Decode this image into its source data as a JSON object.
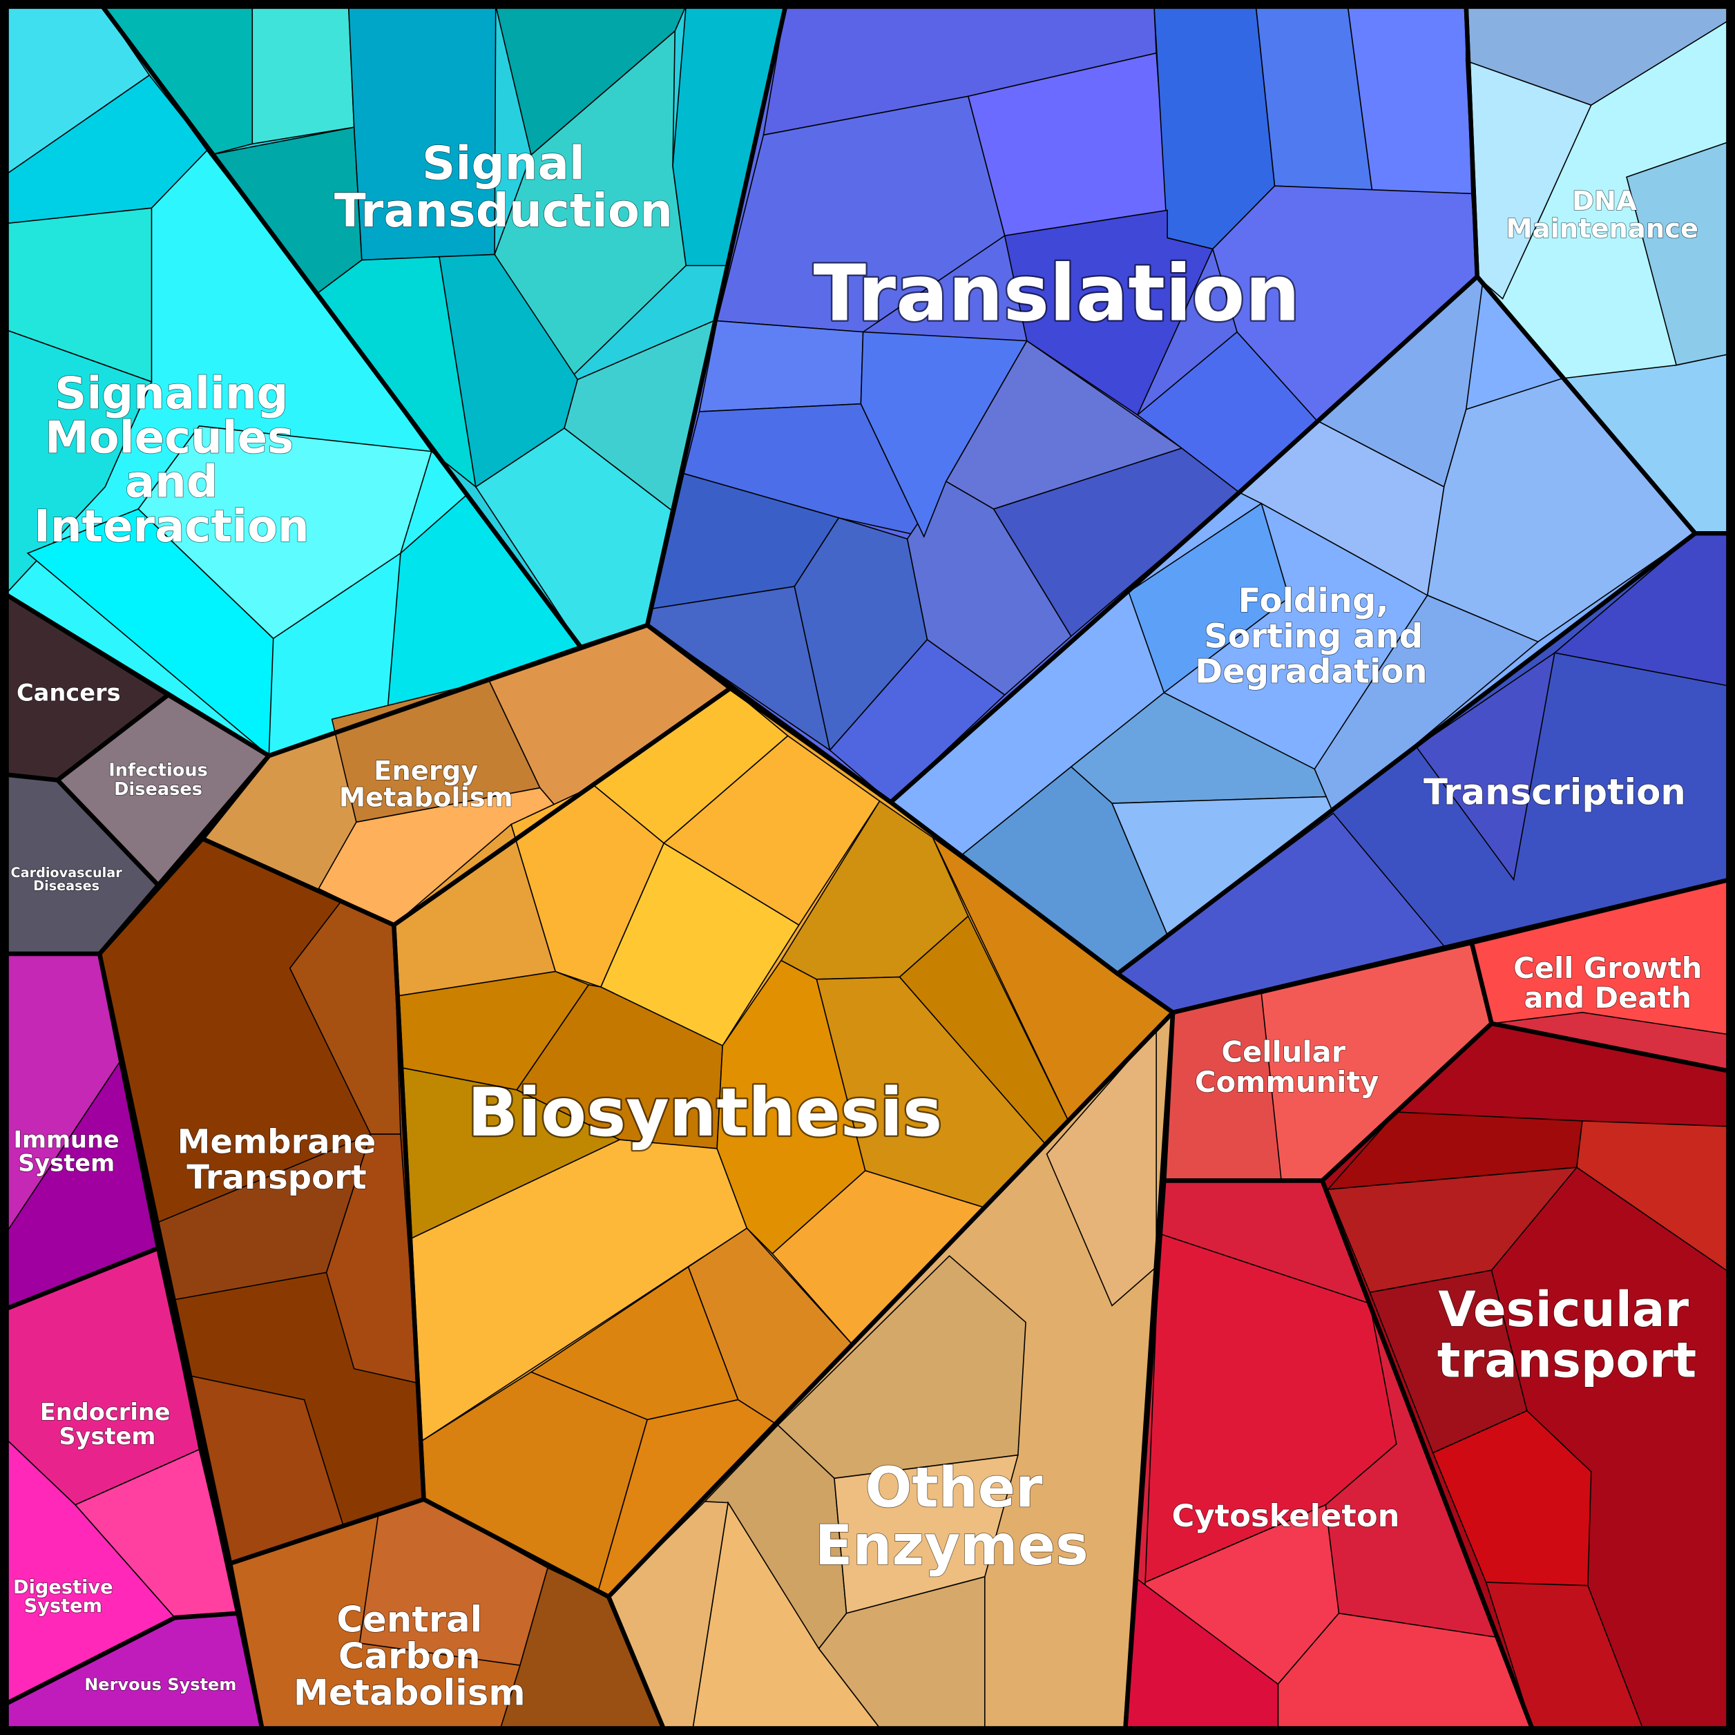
{
  "regions": [
    {
      "lines": [
        "Signal",
        "Transduction"
      ]
    },
    {
      "lines": [
        "Translation"
      ]
    },
    {
      "lines": [
        "DNA",
        "Maintenance"
      ]
    },
    {
      "lines": [
        "Signaling",
        "Molecules",
        "and",
        "Interaction"
      ]
    },
    {
      "lines": [
        "Folding,",
        "Sorting and",
        "Degradation"
      ]
    },
    {
      "lines": [
        "Transcription"
      ]
    },
    {
      "lines": [
        "Energy",
        "Metabolism"
      ]
    },
    {
      "lines": [
        "Cancers"
      ]
    },
    {
      "lines": [
        "Infectious",
        "Diseases"
      ]
    },
    {
      "lines": [
        "Cardiovascular",
        "Diseases"
      ]
    },
    {
      "lines": [
        "Biosynthesis"
      ]
    },
    {
      "lines": [
        "Membrane",
        "Transport"
      ]
    },
    {
      "lines": [
        "Immune",
        "System"
      ]
    },
    {
      "lines": [
        "Endocrine",
        "System"
      ]
    },
    {
      "lines": [
        "Digestive",
        "System"
      ]
    },
    {
      "lines": [
        "Nervous System"
      ]
    },
    {
      "lines": [
        "Central",
        "Carbon",
        "Metabolism"
      ]
    },
    {
      "lines": [
        "Other",
        "Enzymes"
      ]
    },
    {
      "lines": [
        "Cellular",
        "Community"
      ]
    },
    {
      "lines": [
        "Cell Growth",
        "and Death"
      ]
    },
    {
      "lines": [
        "Vesicular",
        "transport"
      ]
    },
    {
      "lines": [
        "Cytoskeleton"
      ]
    }
  ]
}
